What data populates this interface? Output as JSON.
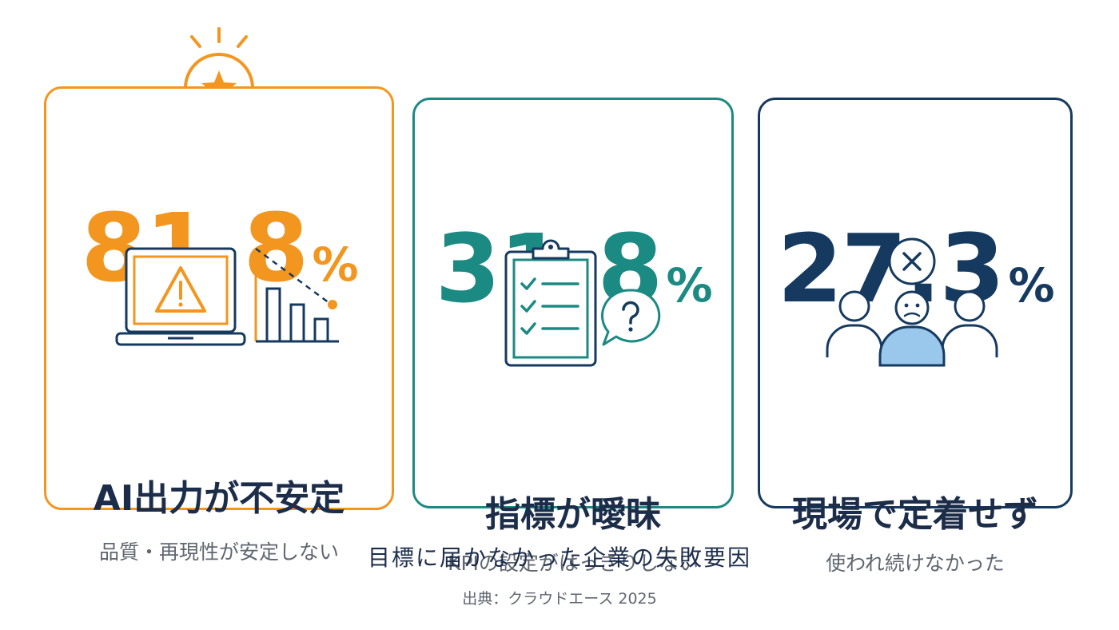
{
  "colors": {
    "orange": "#f3961f",
    "teal": "#1b8a82",
    "navy": "#163a5f",
    "light_blue": "#9ac7ec"
  },
  "cards": [
    {
      "value": "81.8",
      "unit": "%",
      "title": "AI出力が不安定",
      "subtitle": "品質・再現性が安定しない",
      "icons": [
        "star-badge-icon",
        "laptop-warning-icon",
        "declining-bar-chart-icon"
      ]
    },
    {
      "value": "31.8",
      "unit": "%",
      "title": "指標が曖昧",
      "subtitle": "KPIの設定がはっきりしない",
      "icons": [
        "clipboard-checklist-icon",
        "question-bubble-icon"
      ]
    },
    {
      "value": "27.3",
      "unit": "%",
      "title": "現場で定着せず",
      "subtitle": "使われ続けなかった",
      "icons": [
        "x-circle-icon",
        "people-group-icon"
      ]
    }
  ],
  "caption": "目標に届かなかった企業の失敗要因",
  "source": "出典：クラウドエース 2025"
}
